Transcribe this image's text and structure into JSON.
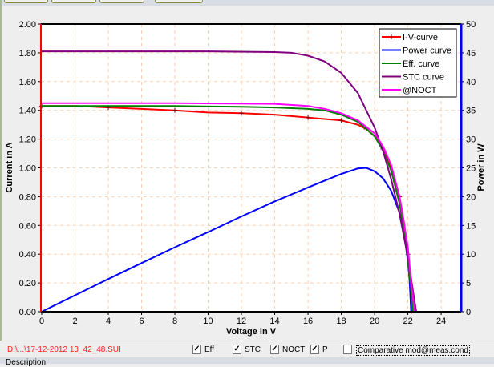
{
  "status": {
    "file": "D:\\...\\17-12-2012  13_42_48.SUI",
    "description_label": "Description"
  },
  "options": [
    {
      "label": "Eff",
      "checked": true
    },
    {
      "label": "STC",
      "checked": true
    },
    {
      "label": "NOCT",
      "checked": true
    },
    {
      "label": "P",
      "checked": true
    },
    {
      "label": "Comparative mod@meas.cond",
      "checked": false
    }
  ],
  "chart_data": {
    "type": "line",
    "xlabel": "Voltage in V",
    "ylabel": "Current in A",
    "y2label": "Power in W",
    "xlim": [
      0,
      25.2
    ],
    "ylim": [
      0,
      2
    ],
    "y2lim": [
      0,
      50
    ],
    "xticks": [
      0,
      2,
      4,
      6,
      8,
      10,
      12,
      14,
      16,
      18,
      20,
      22,
      24
    ],
    "yticks": [
      "0.00",
      "0.20",
      "0.40",
      "0.60",
      "0.80",
      "1.00",
      "1.20",
      "1.40",
      "1.60",
      "1.80",
      "2.00"
    ],
    "y2ticks": [
      0,
      5,
      10,
      15,
      20,
      25,
      30,
      35,
      40,
      45,
      50
    ],
    "grid": true,
    "legend_position": "top-right",
    "colors": {
      "left_axis": "#ff0000",
      "right_axis": "#0000ff",
      "grid": "#ffd0b0"
    },
    "series": [
      {
        "name": "I-V-curve",
        "color": "#ff0000",
        "axis": "left",
        "markers": true,
        "points": [
          [
            0,
            1.43
          ],
          [
            2,
            1.43
          ],
          [
            4,
            1.42
          ],
          [
            6,
            1.41
          ],
          [
            8,
            1.4
          ],
          [
            10,
            1.385
          ],
          [
            12,
            1.38
          ],
          [
            14,
            1.37
          ],
          [
            16,
            1.35
          ],
          [
            17,
            1.34
          ],
          [
            18,
            1.33
          ],
          [
            19,
            1.3
          ],
          [
            19.5,
            1.27
          ],
          [
            20,
            1.22
          ],
          [
            20.5,
            1.13
          ],
          [
            21,
            1.0
          ],
          [
            21.5,
            0.8
          ],
          [
            21.8,
            0.6
          ],
          [
            22,
            0.4
          ],
          [
            22.1,
            0.25
          ],
          [
            22.2,
            0
          ]
        ]
      },
      {
        "name": "Power curve",
        "color": "#0000ff",
        "axis": "right",
        "points": [
          [
            0,
            0
          ],
          [
            2,
            2.86
          ],
          [
            4,
            5.68
          ],
          [
            6,
            8.46
          ],
          [
            8,
            11.2
          ],
          [
            10,
            13.85
          ],
          [
            12,
            16.56
          ],
          [
            14,
            19.18
          ],
          [
            16,
            21.6
          ],
          [
            17,
            22.78
          ],
          [
            18,
            23.94
          ],
          [
            19,
            24.9
          ],
          [
            19.5,
            25
          ],
          [
            20,
            24.4
          ],
          [
            20.5,
            23.2
          ],
          [
            21,
            21
          ],
          [
            21.5,
            17.2
          ],
          [
            21.8,
            13
          ],
          [
            22,
            8.8
          ],
          [
            22.1,
            5.5
          ],
          [
            22.2,
            0
          ]
        ]
      },
      {
        "name": "Eff. curve",
        "color": "#008000",
        "axis": "left",
        "points": [
          [
            0,
            1.43
          ],
          [
            4,
            1.43
          ],
          [
            8,
            1.43
          ],
          [
            12,
            1.425
          ],
          [
            14,
            1.42
          ],
          [
            16,
            1.41
          ],
          [
            17,
            1.4
          ],
          [
            18,
            1.37
          ],
          [
            19,
            1.32
          ],
          [
            20,
            1.22
          ],
          [
            20.5,
            1.12
          ],
          [
            21,
            0.98
          ],
          [
            21.5,
            0.75
          ],
          [
            21.8,
            0.55
          ],
          [
            22,
            0.35
          ],
          [
            22.2,
            0.15
          ],
          [
            22.3,
            0
          ]
        ]
      },
      {
        "name": "STC curve",
        "color": "#800080",
        "axis": "left",
        "points": [
          [
            0,
            1.81
          ],
          [
            10,
            1.81
          ],
          [
            14,
            1.805
          ],
          [
            15,
            1.8
          ],
          [
            16,
            1.78
          ],
          [
            17,
            1.74
          ],
          [
            18,
            1.66
          ],
          [
            19,
            1.52
          ],
          [
            20,
            1.28
          ],
          [
            20.5,
            1.12
          ],
          [
            21,
            0.92
          ],
          [
            21.5,
            0.68
          ],
          [
            22,
            0.38
          ],
          [
            22.3,
            0.15
          ],
          [
            22.5,
            0
          ]
        ]
      },
      {
        "name": "@NOCT",
        "color": "#ff00ff",
        "axis": "left",
        "points": [
          [
            0,
            1.45
          ],
          [
            8,
            1.45
          ],
          [
            14,
            1.445
          ],
          [
            16,
            1.43
          ],
          [
            17,
            1.41
          ],
          [
            18,
            1.38
          ],
          [
            19,
            1.33
          ],
          [
            20,
            1.24
          ],
          [
            20.5,
            1.15
          ],
          [
            21,
            1.02
          ],
          [
            21.5,
            0.8
          ],
          [
            22,
            0.45
          ],
          [
            22.2,
            0.2
          ],
          [
            22.4,
            0
          ]
        ]
      }
    ]
  }
}
